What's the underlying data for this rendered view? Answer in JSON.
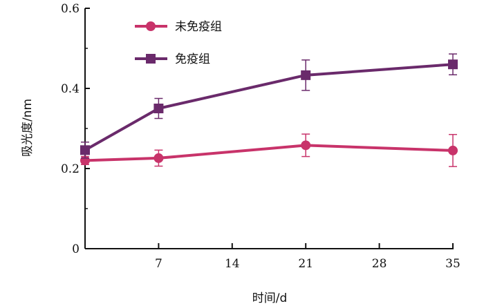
{
  "chart_data": {
    "type": "line",
    "xlabel": "时间/d",
    "ylabel": "吸光度/nm",
    "xlim": [
      0,
      35
    ],
    "ylim": [
      0,
      0.6
    ],
    "x_ticks": [
      7,
      14,
      21,
      28,
      35
    ],
    "x_tick_labels": [
      "7",
      "14",
      "21",
      "28",
      "35"
    ],
    "y_ticks": [
      0,
      0.2,
      0.4,
      0.6
    ],
    "y_tick_labels": [
      "0",
      "0.2",
      "0.4",
      "0.6"
    ],
    "grid": false,
    "legend_position": "top-left",
    "series": [
      {
        "name": "未免疫组",
        "color": "#c8336a",
        "marker": "circle",
        "points": [
          {
            "x": 0,
            "y": 0.22,
            "err": 0.01
          },
          {
            "x": 7,
            "y": 0.226,
            "err": 0.02
          },
          {
            "x": 21,
            "y": 0.258,
            "err": 0.028
          },
          {
            "x": 35,
            "y": 0.245,
            "err": 0.04
          }
        ]
      },
      {
        "name": "免疫组",
        "color": "#6a2a6b",
        "marker": "square",
        "points": [
          {
            "x": 0,
            "y": 0.246,
            "err": 0.02
          },
          {
            "x": 7,
            "y": 0.35,
            "err": 0.025
          },
          {
            "x": 21,
            "y": 0.433,
            "err": 0.038
          },
          {
            "x": 35,
            "y": 0.46,
            "err": 0.026
          }
        ]
      }
    ]
  }
}
